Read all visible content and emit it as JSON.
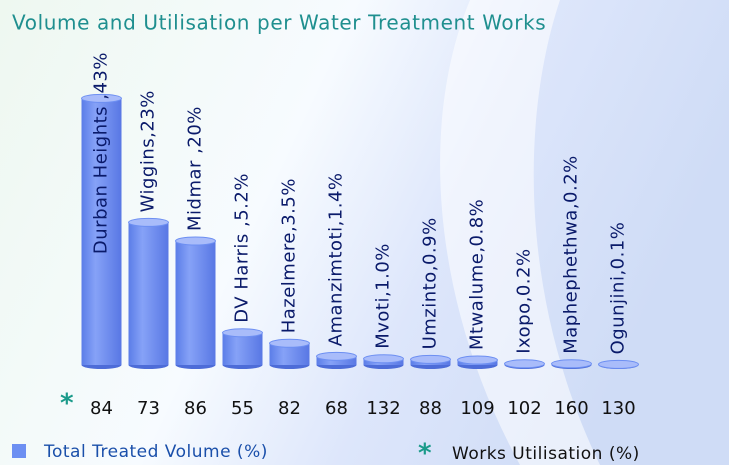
{
  "chart_data": {
    "type": "bar",
    "title": "Volume and Utilisation per Water Treatment Works",
    "ylim": [
      0,
      45
    ],
    "series": [
      {
        "name": "Total Treated Volume (%)",
        "color": "#6d8ff2",
        "values": [
          43,
          23,
          20,
          5.2,
          3.5,
          1.4,
          1.0,
          0.9,
          0.8,
          0.2,
          0.2,
          0.1
        ],
        "value_labels": [
          "Durban Heights ,43%",
          "Wiggins,23%",
          "Midmar ,20%",
          "DV Harris ,5.2%",
          "Hazelmere,3.5%",
          "Amanzimtoti,1.4%",
          "Mvoti,1.0%",
          "Umzinto,0.9%",
          "Mtwalume,0.8%",
          "Ixopo,0.2%",
          "Maphephethwa,0.2%",
          "Ogunjini,0.1%"
        ]
      },
      {
        "name": "Works Utilisation (%)",
        "color": "#1a9a8a",
        "marker": "*",
        "values": [
          84,
          73,
          86,
          55,
          82,
          68,
          132,
          88,
          109,
          102,
          160,
          130
        ]
      }
    ]
  }
}
